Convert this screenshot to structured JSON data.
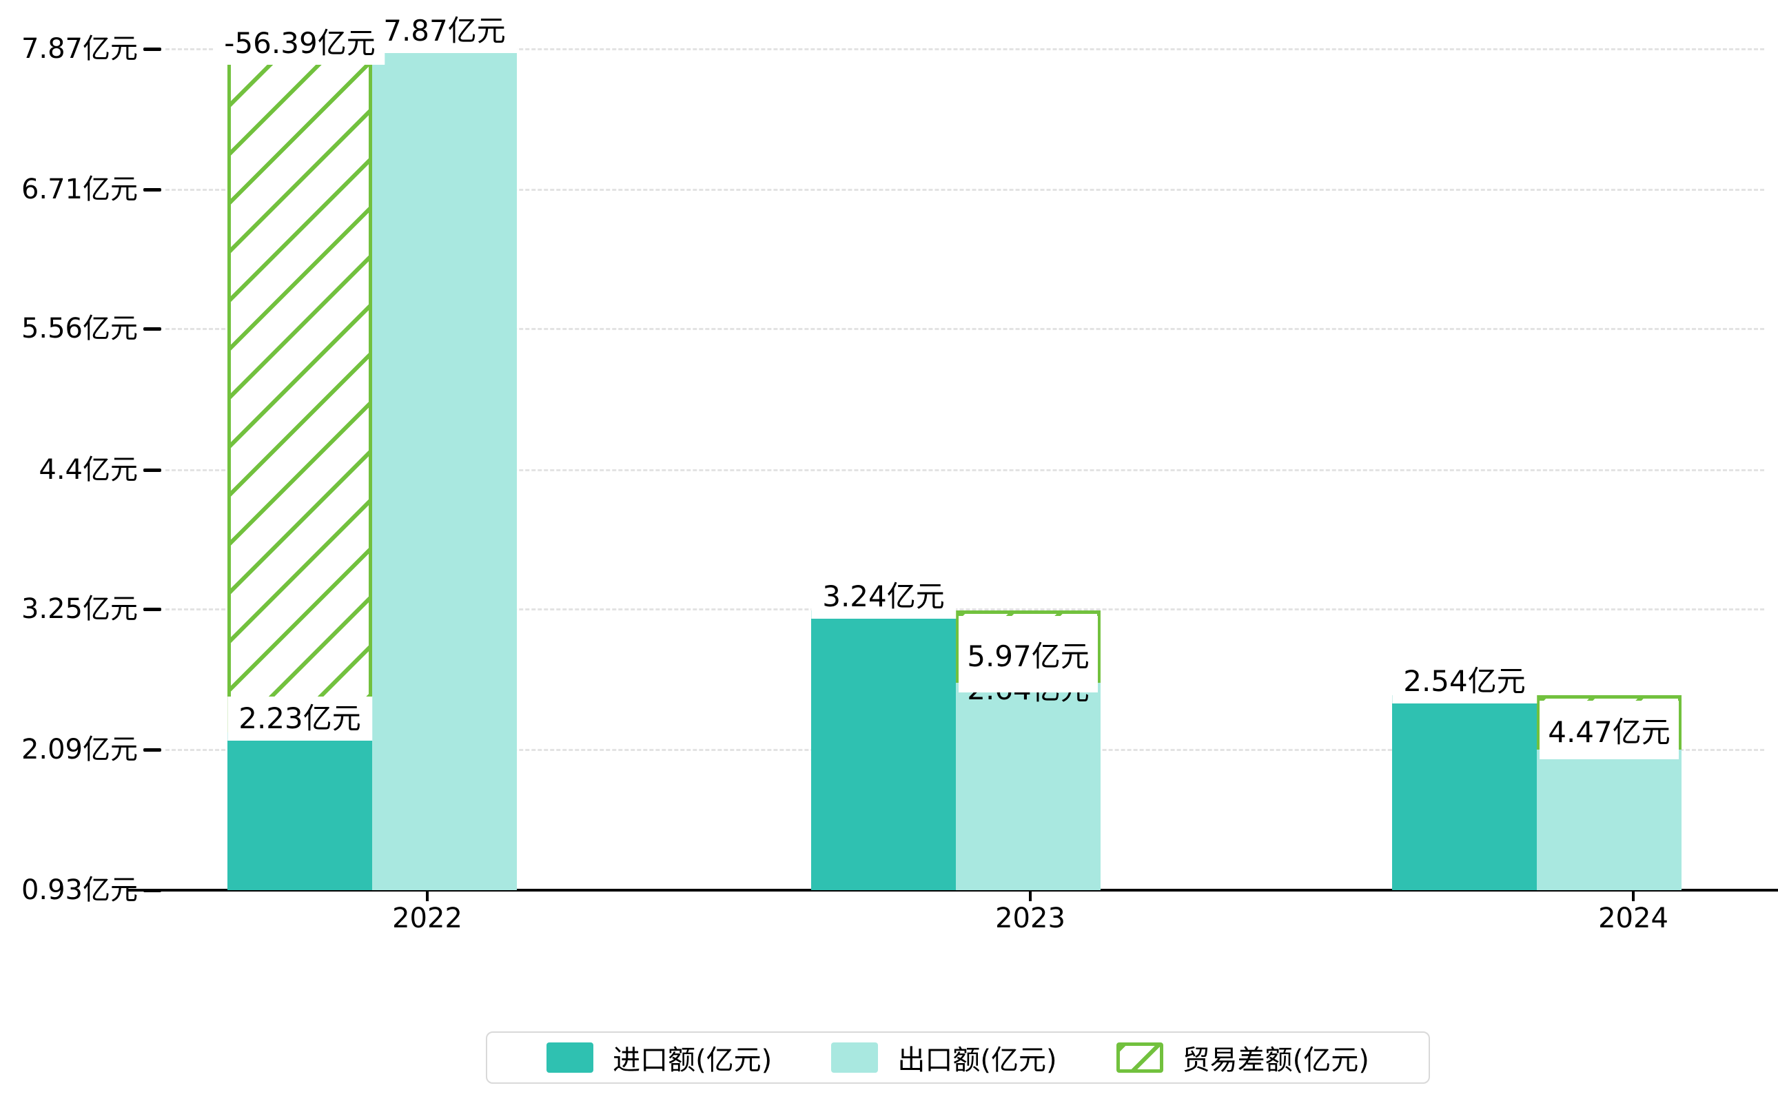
{
  "chart_data": {
    "type": "bar",
    "title": "",
    "categories": [
      "2022",
      "2023",
      "2024"
    ],
    "series": [
      {
        "name": "进口额(亿元)",
        "role": "import",
        "color": "#2fc1b1",
        "values": [
          2.23,
          3.24,
          2.54
        ],
        "labels": [
          "2.23亿元",
          "3.24亿元",
          "2.54亿元"
        ]
      },
      {
        "name": "出口额(亿元)",
        "role": "export",
        "color": "#a9e8e0",
        "values": [
          7.87,
          2.64,
          2.09
        ],
        "labels": [
          "7.87亿元",
          "2.64亿元",
          "2.09亿元"
        ]
      },
      {
        "name": "贸易差额(亿元)",
        "role": "balance",
        "style": "hatched-outline",
        "color": "#72c13e",
        "values": [
          -56.39,
          5.97,
          4.47
        ],
        "labels": [
          "-56.39亿元",
          "5.97亿元",
          "4.47亿元"
        ]
      }
    ],
    "y_axis": {
      "unit": "亿元",
      "min": 0.93,
      "max": 7.87,
      "ticks": [
        {
          "value": 7.87,
          "label": "7.87亿元"
        },
        {
          "value": 6.71,
          "label": "6.71亿元"
        },
        {
          "value": 5.56,
          "label": "5.56亿元"
        },
        {
          "value": 4.4,
          "label": "4.4亿元"
        },
        {
          "value": 3.25,
          "label": "3.25亿元"
        },
        {
          "value": 2.09,
          "label": "2.09亿元"
        },
        {
          "value": 0.93,
          "label": "0.93亿元"
        }
      ]
    },
    "x_axis": {
      "labels": [
        "2022",
        "2023",
        "2024"
      ]
    },
    "legend": {
      "position": "bottom-center",
      "items": [
        {
          "label": "进口额(亿元)",
          "swatch": "solid-teal"
        },
        {
          "label": "出口额(亿元)",
          "swatch": "solid-light-teal"
        },
        {
          "label": "贸易差额(亿元)",
          "swatch": "hatched-green"
        }
      ]
    },
    "grid": {
      "horizontal_dashed": true,
      "color": "#e3e3e3"
    },
    "colors": {
      "import": "#2fc1b1",
      "export": "#a9e8e0",
      "balance_green": "#72c13e",
      "axis": "#000000",
      "label_background": "#ffffff"
    }
  }
}
